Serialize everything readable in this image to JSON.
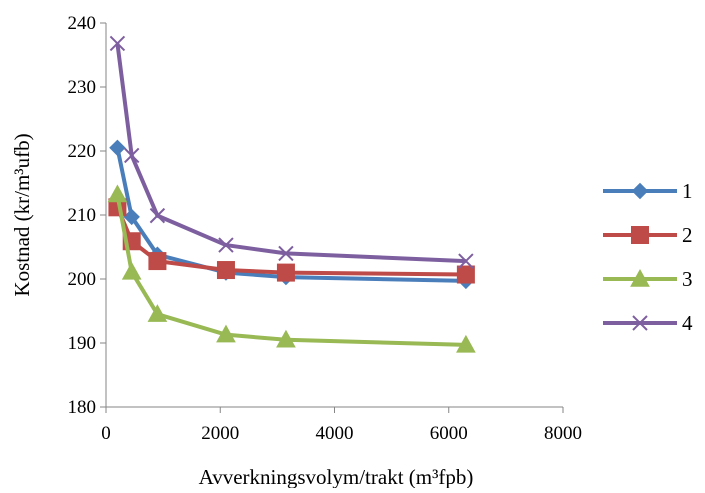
{
  "chart_data": {
    "type": "line",
    "title": "",
    "xlabel": "Avverkningsvolym/trakt (m³fpb)",
    "ylabel": "Kostnad  (kr/m³ufb)",
    "xlim": [
      0,
      8000
    ],
    "ylim": [
      180,
      240
    ],
    "xticks": [
      0,
      2000,
      4000,
      6000,
      8000
    ],
    "yticks": [
      180,
      190,
      200,
      210,
      220,
      230,
      240
    ],
    "grid": false,
    "legend_position": "right",
    "series": [
      {
        "name": "1",
        "color": "#4A7EBB",
        "marker": "diamond",
        "points": [
          [
            200,
            220.5
          ],
          [
            450,
            209.7
          ],
          [
            900,
            203.8
          ],
          [
            2100,
            201.0
          ],
          [
            3150,
            200.3
          ],
          [
            6300,
            199.7
          ]
        ]
      },
      {
        "name": "2",
        "color": "#BE4B48",
        "marker": "square",
        "points": [
          [
            200,
            211.2
          ],
          [
            450,
            205.9
          ],
          [
            900,
            202.8
          ],
          [
            2100,
            201.4
          ],
          [
            3150,
            201.0
          ],
          [
            6300,
            200.7
          ]
        ]
      },
      {
        "name": "3",
        "color": "#98B954",
        "marker": "triangle",
        "points": [
          [
            200,
            213.2
          ],
          [
            450,
            201.1
          ],
          [
            900,
            194.5
          ],
          [
            2100,
            191.3
          ],
          [
            3150,
            190.5
          ],
          [
            6300,
            189.7
          ]
        ]
      },
      {
        "name": "4",
        "color": "#7D5FA0",
        "marker": "x",
        "points": [
          [
            200,
            236.8
          ],
          [
            450,
            219.3
          ],
          [
            900,
            209.9
          ],
          [
            2100,
            205.3
          ],
          [
            3150,
            204.0
          ],
          [
            6300,
            202.8
          ]
        ]
      }
    ]
  }
}
